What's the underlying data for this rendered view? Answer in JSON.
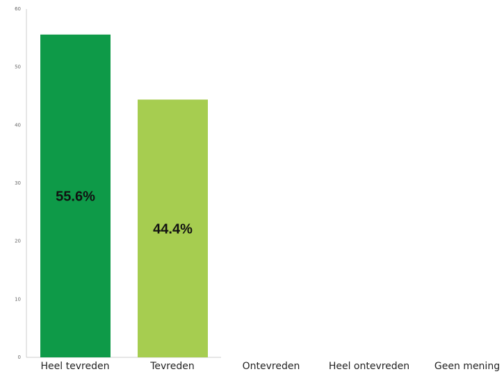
{
  "chart_data": {
    "type": "bar",
    "title": "",
    "xlabel": "",
    "ylabel": "",
    "ylim": [
      0,
      60
    ],
    "yticks": [
      0,
      10,
      20,
      30,
      40,
      50,
      60
    ],
    "grid": false,
    "categories": [
      "Heel tevreden",
      "Tevreden",
      "Ontevreden",
      "Heel ontevreden",
      "Geen mening"
    ],
    "values": [
      55.6,
      44.4,
      0,
      0,
      0
    ],
    "data_labels": [
      "55.6%",
      "44.4%",
      "",
      "",
      ""
    ],
    "colors": [
      "#0e9a48",
      "#a6cd50",
      "#cccccc",
      "#cccccc",
      "#cccccc"
    ]
  }
}
